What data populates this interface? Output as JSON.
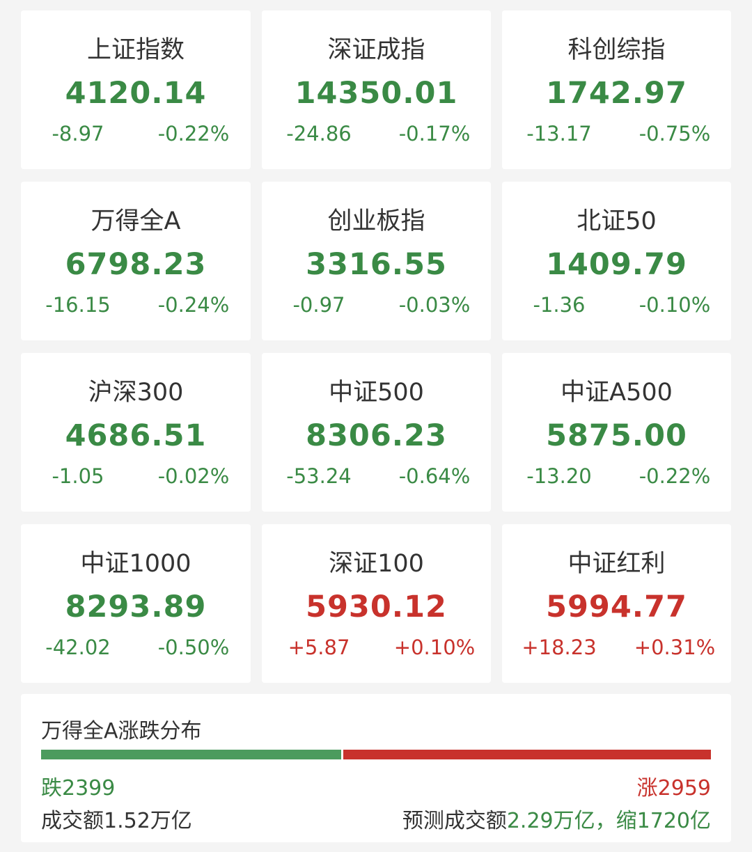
{
  "colors": {
    "down": "#3a8a45",
    "up": "#c8322c",
    "bar_down": "#4c9b5e",
    "bar_up": "#c8322c"
  },
  "indices": [
    {
      "name": "上证指数",
      "value": "4120.14",
      "change": "-8.97",
      "pct": "-0.22%",
      "dir": "down"
    },
    {
      "name": "深证成指",
      "value": "14350.01",
      "change": "-24.86",
      "pct": "-0.17%",
      "dir": "down"
    },
    {
      "name": "科创综指",
      "value": "1742.97",
      "change": "-13.17",
      "pct": "-0.75%",
      "dir": "down"
    },
    {
      "name": "万得全A",
      "value": "6798.23",
      "change": "-16.15",
      "pct": "-0.24%",
      "dir": "down"
    },
    {
      "name": "创业板指",
      "value": "3316.55",
      "change": "-0.97",
      "pct": "-0.03%",
      "dir": "down"
    },
    {
      "name": "北证50",
      "value": "1409.79",
      "change": "-1.36",
      "pct": "-0.10%",
      "dir": "down"
    },
    {
      "name": "沪深300",
      "value": "4686.51",
      "change": "-1.05",
      "pct": "-0.02%",
      "dir": "down"
    },
    {
      "name": "中证500",
      "value": "8306.23",
      "change": "-53.24",
      "pct": "-0.64%",
      "dir": "down"
    },
    {
      "name": "中证A500",
      "value": "5875.00",
      "change": "-13.20",
      "pct": "-0.22%",
      "dir": "down"
    },
    {
      "name": "中证1000",
      "value": "8293.89",
      "change": "-42.02",
      "pct": "-0.50%",
      "dir": "down"
    },
    {
      "name": "深证100",
      "value": "5930.12",
      "change": "+5.87",
      "pct": "+0.10%",
      "dir": "up"
    },
    {
      "name": "中证红利",
      "value": "5994.77",
      "change": "+18.23",
      "pct": "+0.31%",
      "dir": "up"
    }
  ],
  "distribution": {
    "title": "万得全A涨跌分布",
    "fall_label": "跌2399",
    "fall_count": 2399,
    "rise_label": "涨2959",
    "rise_count": 2959,
    "volume": "成交额1.52万亿",
    "predict_label": "预测成交额",
    "predict_value": "2.29万亿，缩1720亿"
  }
}
